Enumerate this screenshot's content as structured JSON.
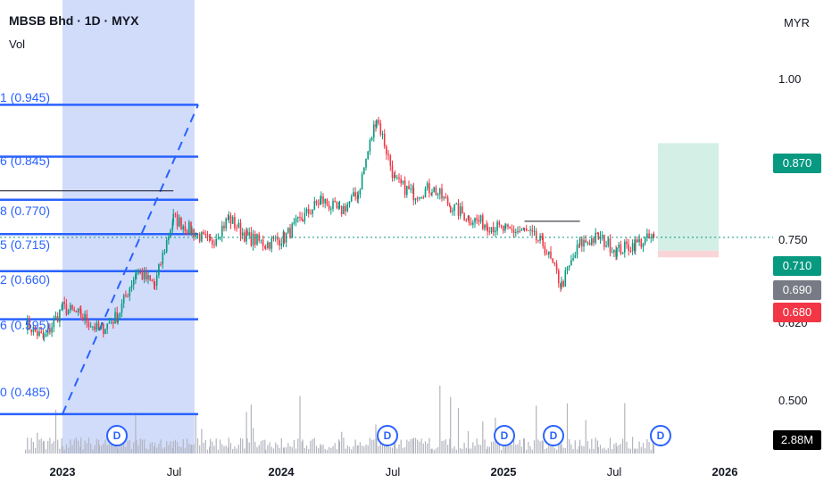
{
  "header": {
    "title": "MBSB Bhd · 1D · MYX",
    "volume_label": "Vol",
    "currency": "MYR"
  },
  "price_axis": {
    "ticks": [
      "1.00",
      "0.750",
      "0.500"
    ],
    "partial_tick": "0.620"
  },
  "badges": {
    "target": {
      "text": "0.870",
      "color": "#089981"
    },
    "current": {
      "text": "0.710",
      "color": "#089981"
    },
    "entry": {
      "text": "0.690",
      "color": "#787b86"
    },
    "stop": {
      "text": "0.680",
      "color": "#f23645"
    },
    "volume": {
      "text": "2.88M",
      "color": "#000000"
    }
  },
  "fib_labels": [
    {
      "text": "1 (0.945)",
      "value": 0.945
    },
    {
      "text": "6 (0.845)",
      "value": 0.845
    },
    {
      "text": "8 (0.770)",
      "value": 0.77
    },
    {
      "text": "5 (0.715)",
      "value": 0.715
    },
    {
      "text": "2 (0.660)",
      "value": 0.66
    },
    {
      "text": "6 (0.595)",
      "value": 0.595
    },
    {
      "text": "0 (0.485)",
      "value": 0.485
    }
  ],
  "time_axis": [
    {
      "text": "2023",
      "year": true
    },
    {
      "text": "Jul",
      "year": false
    },
    {
      "text": "2024",
      "year": true
    },
    {
      "text": "Jul",
      "year": false
    },
    {
      "text": "2025",
      "year": true
    },
    {
      "text": "Jul",
      "year": false
    },
    {
      "text": "2026",
      "year": true
    }
  ],
  "dividend_markers": [
    "D",
    "D",
    "D",
    "D",
    "D"
  ],
  "colors": {
    "up": "#089981",
    "down": "#f23645",
    "fib": "#2962ff",
    "highlight": "#d1dcfb",
    "target_zone": "#d4efe6",
    "stop_zone": "#f9d5d8"
  },
  "chart_data": {
    "type": "candlestick",
    "symbol": "MBSB Bhd",
    "interval": "1D",
    "exchange": "MYX",
    "currency": "MYR",
    "y_scale": "log",
    "ylim": [
      0.45,
      1.05
    ],
    "x_range": [
      "2022-11",
      "2026-02"
    ],
    "price_path": [
      {
        "date": "2022-11",
        "price": 0.59
      },
      {
        "date": "2022-12",
        "price": 0.57
      },
      {
        "date": "2023-01",
        "price": 0.61
      },
      {
        "date": "2023-02",
        "price": 0.6
      },
      {
        "date": "2023-03",
        "price": 0.58
      },
      {
        "date": "2023-04",
        "price": 0.6
      },
      {
        "date": "2023-05",
        "price": 0.66
      },
      {
        "date": "2023-06",
        "price": 0.64
      },
      {
        "date": "2023-07",
        "price": 0.74
      },
      {
        "date": "2023-08",
        "price": 0.72
      },
      {
        "date": "2023-09",
        "price": 0.7
      },
      {
        "date": "2023-10",
        "price": 0.74
      },
      {
        "date": "2023-11",
        "price": 0.71
      },
      {
        "date": "2023-12",
        "price": 0.7
      },
      {
        "date": "2024-01",
        "price": 0.71
      },
      {
        "date": "2024-02",
        "price": 0.74
      },
      {
        "date": "2024-03",
        "price": 0.77
      },
      {
        "date": "2024-04",
        "price": 0.75
      },
      {
        "date": "2024-05",
        "price": 0.78
      },
      {
        "date": "2024-06",
        "price": 0.92
      },
      {
        "date": "2024-07",
        "price": 0.8
      },
      {
        "date": "2024-08",
        "price": 0.78
      },
      {
        "date": "2024-09",
        "price": 0.79
      },
      {
        "date": "2024-10",
        "price": 0.76
      },
      {
        "date": "2024-11",
        "price": 0.74
      },
      {
        "date": "2024-12",
        "price": 0.73
      },
      {
        "date": "2025-01",
        "price": 0.72
      },
      {
        "date": "2025-02",
        "price": 0.72
      },
      {
        "date": "2025-03",
        "price": 0.7
      },
      {
        "date": "2025-04",
        "price": 0.64
      },
      {
        "date": "2025-05",
        "price": 0.7
      },
      {
        "date": "2025-06",
        "price": 0.71
      },
      {
        "date": "2025-07",
        "price": 0.69
      },
      {
        "date": "2025-08",
        "price": 0.7
      },
      {
        "date": "2025-09",
        "price": 0.71
      }
    ],
    "fib_levels": [
      {
        "ratio_label": "1",
        "price": 0.945
      },
      {
        "ratio_label": "6",
        "price": 0.845
      },
      {
        "ratio_label": "8",
        "price": 0.77
      },
      {
        "ratio_label": "5",
        "price": 0.715
      },
      {
        "ratio_label": "2",
        "price": 0.66
      },
      {
        "ratio_label": "6",
        "price": 0.595
      },
      {
        "ratio_label": "0",
        "price": 0.485
      }
    ],
    "position": {
      "target": 0.87,
      "entry": 0.69,
      "stop": 0.68,
      "current": 0.71
    },
    "resistance_lines": [
      {
        "from": "2022-11",
        "to": "2023-07",
        "price": 0.785
      },
      {
        "from": "2025-02",
        "to": "2025-05",
        "price": 0.735
      }
    ],
    "highlight_range": [
      "2023-01",
      "2023-08"
    ],
    "last_volume": "2.88M",
    "dividend_dates": [
      "2023-04",
      "2024-06",
      "2025-01",
      "2025-03",
      "2025-09"
    ]
  }
}
